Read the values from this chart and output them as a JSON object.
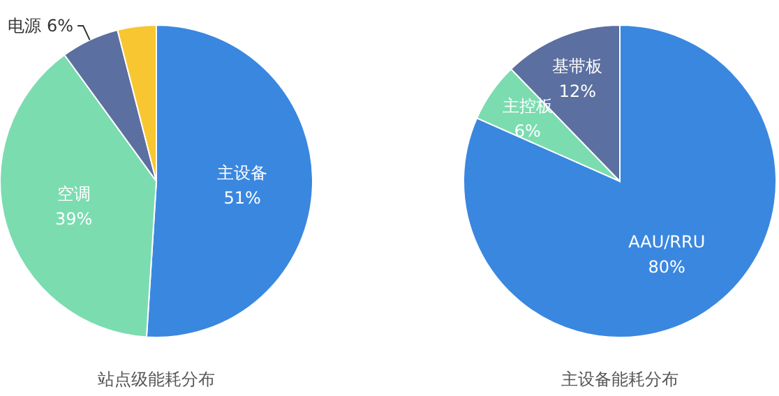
{
  "chart_data": [
    {
      "type": "pie",
      "title": "站点级能耗分布",
      "categories": [
        "主设备",
        "空调",
        "电源",
        null
      ],
      "values": [
        51,
        39,
        6,
        4
      ],
      "value_labels": [
        "51%",
        "39%",
        "6%",
        null
      ],
      "colors": [
        "#3a87e0",
        "#7bdcb0",
        "#5b6fa0",
        "#f8c630"
      ]
    },
    {
      "type": "pie",
      "title": "主设备能耗分布",
      "categories": [
        "AAU/RRU",
        "主控板",
        "基带板"
      ],
      "values": [
        80,
        6,
        12
      ],
      "value_labels": [
        "80%",
        "6%",
        "12%"
      ],
      "colors": [
        "#3a87e0",
        "#7bdcb0",
        "#5b6fa0"
      ]
    }
  ]
}
